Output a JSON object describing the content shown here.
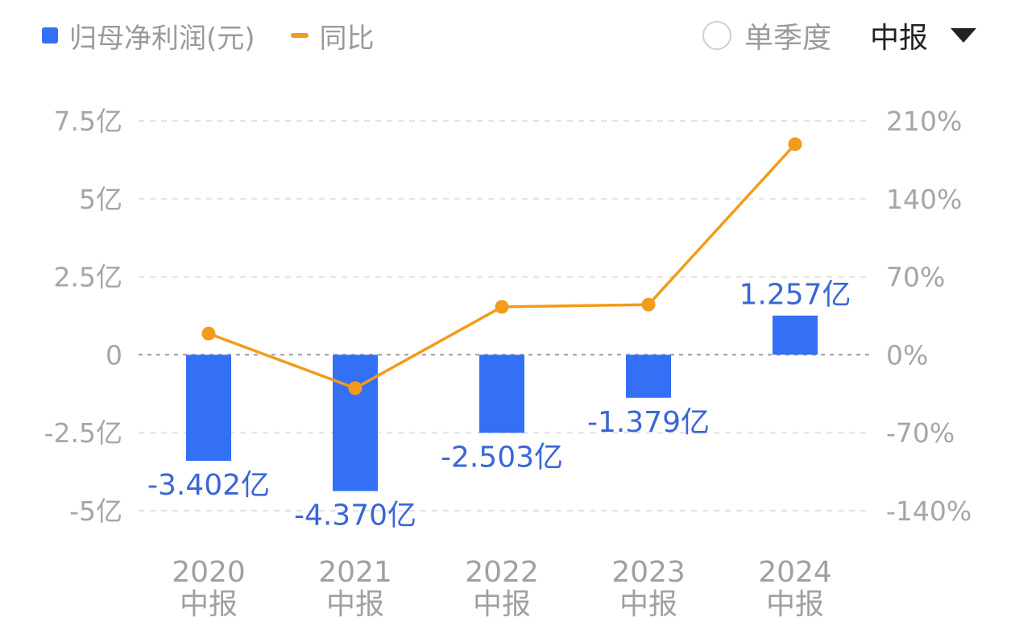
{
  "legend": {
    "bar_label": "归母净利润(元)",
    "line_label": "同比",
    "bar_color": "#3370f5",
    "line_color": "#f39b1a"
  },
  "controls": {
    "radio_label": "单季度",
    "select_value": "中报"
  },
  "chart_data": {
    "type": "bar",
    "categories": [
      "2020",
      "2021",
      "2022",
      "2023",
      "2024"
    ],
    "category_sublabel": "中报",
    "series": [
      {
        "name": "归母净利润(元)",
        "type": "bar",
        "axis": "left",
        "values": [
          -3.402,
          -4.37,
          -2.503,
          -1.379,
          1.257
        ],
        "value_labels": [
          "-3.402亿",
          "-4.370亿",
          "-2.503亿",
          "-1.379亿",
          "1.257亿"
        ]
      },
      {
        "name": "同比",
        "type": "line",
        "axis": "right",
        "values": [
          19,
          -30,
          43,
          45,
          189
        ]
      }
    ],
    "left_axis": {
      "ticks": [
        7.5,
        5,
        2.5,
        0,
        -2.5,
        -5
      ],
      "tick_labels": [
        "7.5亿",
        "5亿",
        "2.5亿",
        "0",
        "-2.5亿",
        "-5亿"
      ],
      "ylim": [
        -5,
        7.5
      ]
    },
    "right_axis": {
      "ticks": [
        210,
        140,
        70,
        0,
        -70,
        -140
      ],
      "tick_labels": [
        "210%",
        "140%",
        "70%",
        "0%",
        "-70%",
        "-140%"
      ],
      "ylim": [
        -140,
        210
      ]
    },
    "grid": true
  }
}
